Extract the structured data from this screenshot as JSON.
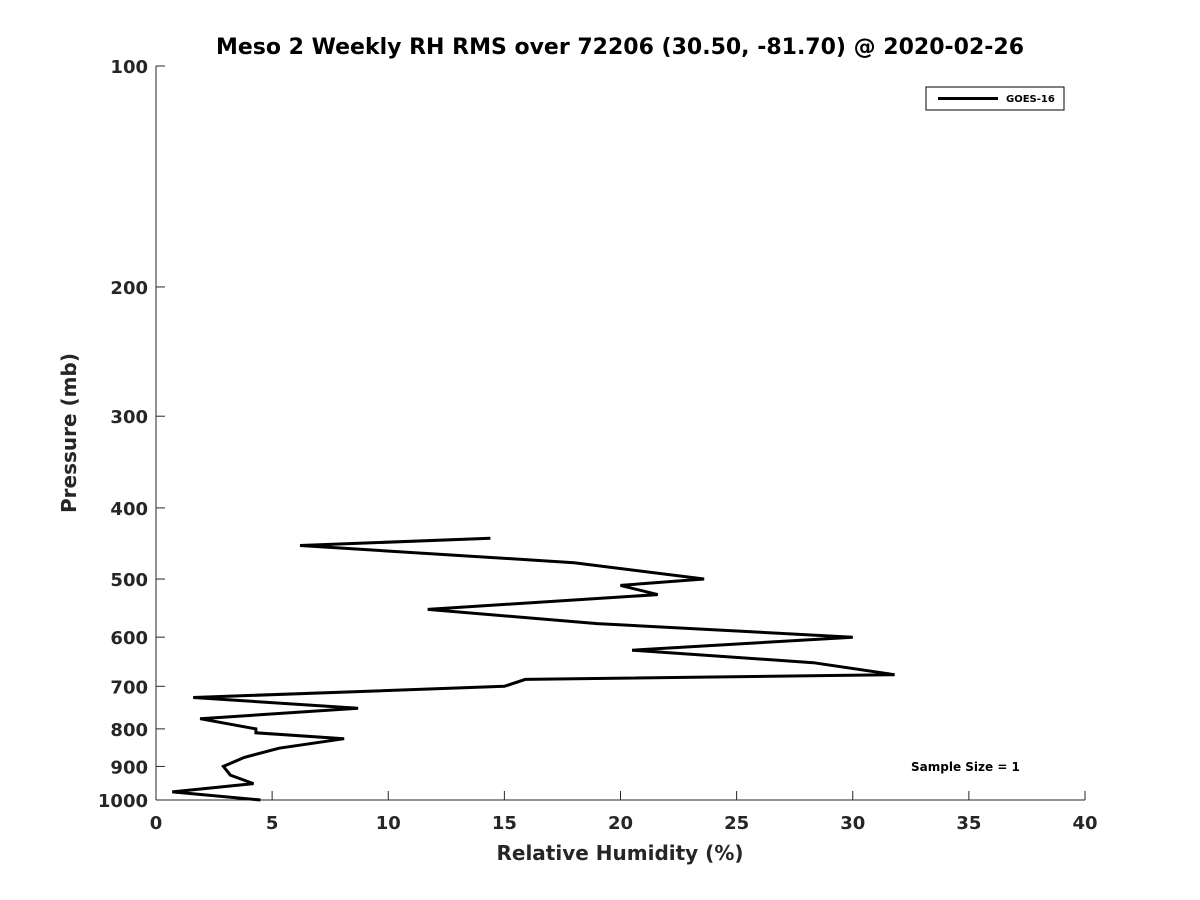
{
  "chart_data": {
    "type": "line",
    "title": "Meso 2 Weekly RH RMS over 72206 (30.50, -81.70) @ 2020-02-26",
    "xlabel": "Relative Humidity (%)",
    "ylabel": "Pressure (mb)",
    "xlim": [
      0,
      40
    ],
    "ylim": [
      100,
      1000
    ],
    "y_scale": "log",
    "y_reversed": true,
    "grid": false,
    "legend_position": "top-right",
    "x_ticks": [
      0,
      5,
      10,
      15,
      20,
      25,
      30,
      35,
      40
    ],
    "x_tick_labels": [
      "0",
      "5",
      "10",
      "15",
      "20",
      "25",
      "30",
      "35",
      "40"
    ],
    "y_ticks": [
      100,
      200,
      300,
      400,
      500,
      600,
      700,
      800,
      900,
      1000
    ],
    "y_tick_labels": [
      "100",
      "200",
      "300",
      "400",
      "500",
      "600",
      "700",
      "800",
      "900",
      "1000"
    ],
    "series": [
      {
        "name": "GOES-16",
        "color": "#000000",
        "points": [
          {
            "x": 4.5,
            "y": 1000
          },
          {
            "x": 0.7,
            "y": 975
          },
          {
            "x": 4.2,
            "y": 950
          },
          {
            "x": 3.2,
            "y": 925
          },
          {
            "x": 2.9,
            "y": 900
          },
          {
            "x": 3.8,
            "y": 875
          },
          {
            "x": 5.3,
            "y": 850
          },
          {
            "x": 8.1,
            "y": 825
          },
          {
            "x": 4.3,
            "y": 810
          },
          {
            "x": 4.3,
            "y": 800
          },
          {
            "x": 1.9,
            "y": 775
          },
          {
            "x": 8.7,
            "y": 750
          },
          {
            "x": 1.6,
            "y": 725
          },
          {
            "x": 15.0,
            "y": 700
          },
          {
            "x": 15.9,
            "y": 685
          },
          {
            "x": 31.8,
            "y": 675
          },
          {
            "x": 28.3,
            "y": 650
          },
          {
            "x": 20.5,
            "y": 625
          },
          {
            "x": 30.0,
            "y": 600
          },
          {
            "x": 19.0,
            "y": 575
          },
          {
            "x": 11.7,
            "y": 550
          },
          {
            "x": 21.6,
            "y": 525
          },
          {
            "x": 20.0,
            "y": 510
          },
          {
            "x": 23.6,
            "y": 500
          },
          {
            "x": 18.0,
            "y": 475
          },
          {
            "x": 6.2,
            "y": 450
          },
          {
            "x": 14.4,
            "y": 440
          }
        ]
      }
    ],
    "annotations": [
      {
        "text": "Sample Size = 1"
      }
    ]
  }
}
